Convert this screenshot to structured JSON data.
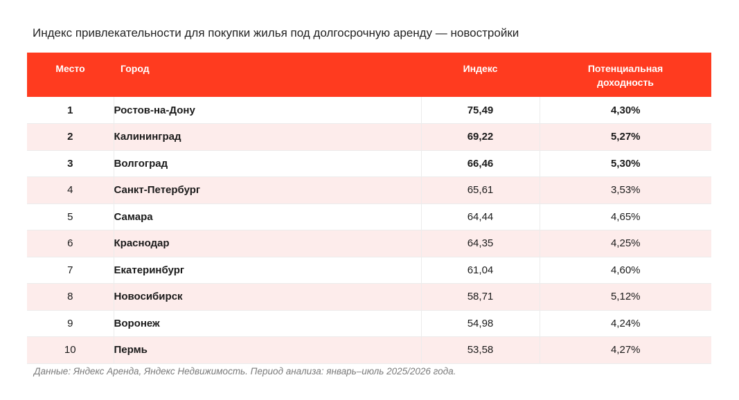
{
  "title": "Индекс привлекательности для покупки жилья под долгосрочную аренду — новостройки",
  "table": {
    "headers": {
      "rank": "Место",
      "city": "Город",
      "index": "Индекс",
      "yield_line1": "Потенциальная",
      "yield_line2": "доходность"
    },
    "rows": [
      {
        "rank": "1",
        "city": "Ростов-на-Дону",
        "index": "75,49",
        "yield": "4,30%"
      },
      {
        "rank": "2",
        "city": "Калининград",
        "index": "69,22",
        "yield": "5,27%"
      },
      {
        "rank": "3",
        "city": "Волгоград",
        "index": "66,46",
        "yield": "5,30%"
      },
      {
        "rank": "4",
        "city": "Санкт-Петербург",
        "index": "65,61",
        "yield": "3,53%"
      },
      {
        "rank": "5",
        "city": "Самара",
        "index": "64,44",
        "yield": "4,65%"
      },
      {
        "rank": "6",
        "city": "Краснодар",
        "index": "64,35",
        "yield": "4,25%"
      },
      {
        "rank": "7",
        "city": "Екатеринбург",
        "index": "61,04",
        "yield": "4,60%"
      },
      {
        "rank": "8",
        "city": "Новосибирск",
        "index": "58,71",
        "yield": "5,12%"
      },
      {
        "rank": "9",
        "city": "Воронеж",
        "index": "54,98",
        "yield": "4,24%"
      },
      {
        "rank": "10",
        "city": "Пермь",
        "index": "53,58",
        "yield": "4,27%"
      }
    ]
  },
  "source_note": "Данные: Яндекс Аренда, Яндекс Недвижимость. Период анализа: январь–июль 2025/2026 года.",
  "colors": {
    "header_background": "#ff3b1f",
    "header_text": "#ffffff",
    "stripe_row": "#fdeceb",
    "plain_row": "#ffffff"
  }
}
